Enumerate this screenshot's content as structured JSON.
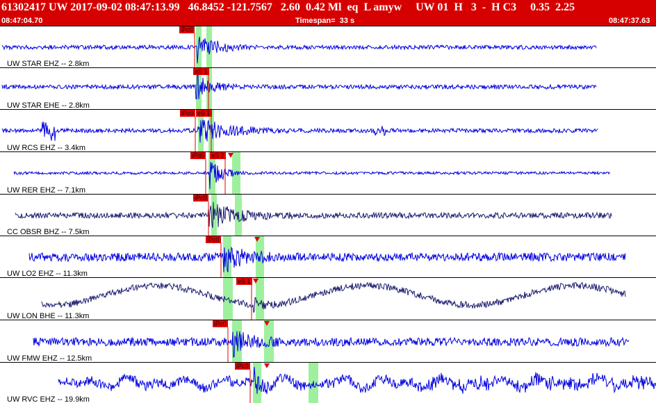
{
  "header": {
    "title": "61302417 UW 2017-09-02 08:47:13.99   46.8452 -121.7567   2.60  0.42 Ml  eq  L amyw     UW 01  H   3  -  H C3     0.35  2.25",
    "start_time": "08:47:04.70",
    "timespan": "Timespan=  33 s",
    "end_time": "08:47:37.63",
    "bar_color": "#d70000"
  },
  "colors": {
    "trace": "#0000e0",
    "trace_dark": "#1a1a6e",
    "pick": "#e00000",
    "window": "#9ef09e"
  },
  "traces": [
    {
      "label": "UW STAR EHZ -- 2.8km",
      "picks": [
        "iPc0"
      ],
      "color": "blue"
    },
    {
      "label": "UW STAR EHE -- 2.8km",
      "picks": [
        "eS 1"
      ],
      "color": "blue"
    },
    {
      "label": "UW RCS EHZ -- 3.4km",
      "picks": [
        "iPc0",
        "eS 1"
      ],
      "color": "blue"
    },
    {
      "label": "UW RER EHZ -- 7.1km",
      "picks": [
        "iPd0",
        "eS 2"
      ],
      "color": "blue"
    },
    {
      "label": "CC OBSR BHZ -- 7.5km",
      "picks": [
        "iPc0"
      ],
      "color": "dark"
    },
    {
      "label": "UW LO2 EHZ -- 11.3km",
      "picks": [
        "iPc0"
      ],
      "color": "blue"
    },
    {
      "label": "UW LON BHE -- 11.3km",
      "picks": [
        "eS 1"
      ],
      "color": "dark"
    },
    {
      "label": "UW FMW EHZ -- 12.5km",
      "picks": [
        "iPc0"
      ],
      "color": "blue"
    },
    {
      "label": "UW RVC EHZ -- 19.9km",
      "picks": [
        "iPc0"
      ],
      "color": "blue"
    }
  ]
}
